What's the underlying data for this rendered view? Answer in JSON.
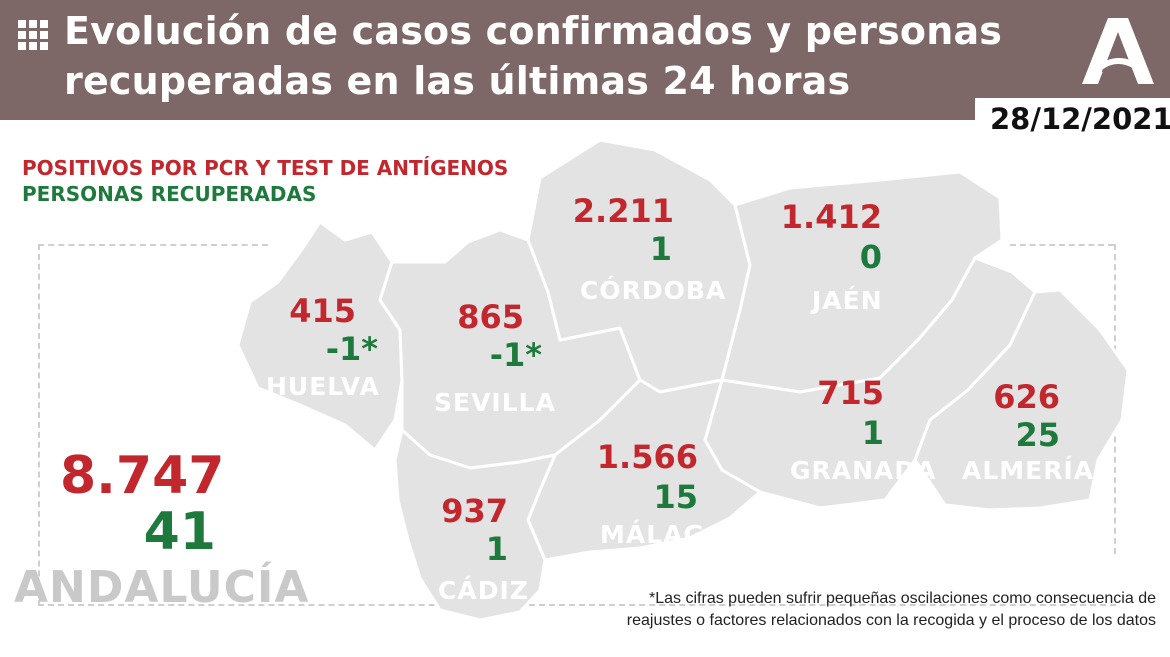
{
  "header": {
    "title_line1": "Evolución de casos confirmados y personas",
    "title_line2": "recuperadas en las últimas 24 horas",
    "date": "28/12/2021",
    "icon": "grid-icon",
    "logo": "junta-andalucia-logo-icon"
  },
  "legend": {
    "positives": "POSITIVOS POR PCR Y TEST DE ANTÍGENOS",
    "recovered": "PERSONAS RECUPERADAS"
  },
  "colors": {
    "header_bg": "#7d6767",
    "positives": "#c1272d",
    "recovered": "#1e7a3c",
    "map_fill": "#e3e3e3"
  },
  "provinces": {
    "huelva": {
      "name": "HUELVA",
      "positives": "415",
      "recovered": "-1*"
    },
    "sevilla": {
      "name": "SEVILLA",
      "positives": "865",
      "recovered": "-1*"
    },
    "cordoba": {
      "name": "CÓRDOBA",
      "positives": "2.211",
      "recovered": "1"
    },
    "jaen": {
      "name": "JAÉN",
      "positives": "1.412",
      "recovered": "0"
    },
    "granada": {
      "name": "GRANADA",
      "positives": "715",
      "recovered": "1"
    },
    "almeria": {
      "name": "ALMERÍA",
      "positives": "626",
      "recovered": "25"
    },
    "malaga": {
      "name": "MÁLAGA",
      "positives": "1.566",
      "recovered": "15"
    },
    "cadiz": {
      "name": "CÁDIZ",
      "positives": "937",
      "recovered": "1"
    }
  },
  "andalucia": {
    "name": "ANDALUCÍA",
    "positives": "8.747",
    "recovered": "41"
  },
  "footnote": {
    "line1": "*Las cifras pueden sufrir pequeñas oscilaciones como consecuencia de",
    "line2": "reajustes o factores relacionados con la recogida y el proceso de los datos"
  }
}
